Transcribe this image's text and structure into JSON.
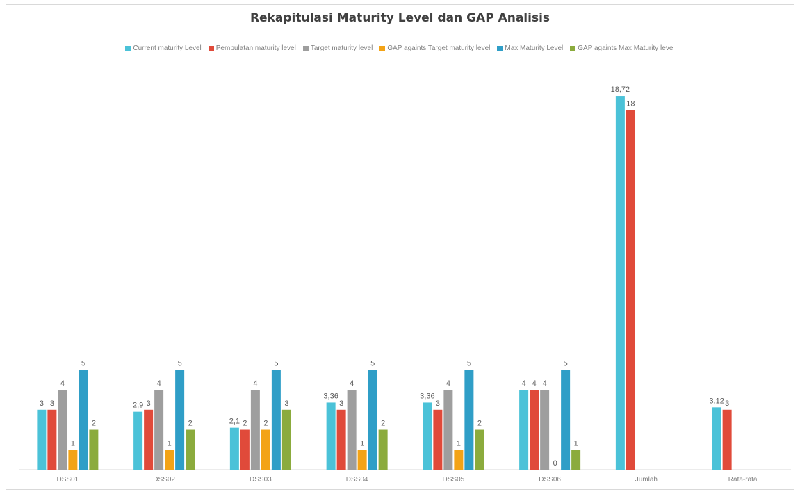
{
  "chart_data": {
    "type": "bar",
    "title": "Rekapitulasi Maturity Level dan GAP Analisis",
    "xlabel": "",
    "ylabel": "",
    "ylim": [
      0,
      19
    ],
    "grid": false,
    "legend_position": "top",
    "categories": [
      "DSS01",
      "DSS02",
      "DSS03",
      "DSS04",
      "DSS05",
      "DSS06",
      "Jumlah",
      "Rata-rata"
    ],
    "series": [
      {
        "name": "Current maturity Level",
        "color": "#4bc2d8",
        "values": [
          3,
          2.9,
          2.1,
          3.36,
          3.36,
          4,
          18.72,
          3.12
        ],
        "labels": [
          "3",
          "2,9",
          "2,1",
          "3,36",
          "3,36",
          "4",
          "18,72",
          "3,12"
        ]
      },
      {
        "name": "Pembulatan maturity level",
        "color": "#e04a3a",
        "values": [
          3,
          3,
          2,
          3,
          3,
          4,
          18,
          3
        ],
        "labels": [
          "3",
          "3",
          "2",
          "3",
          "3",
          "4",
          "18",
          "3"
        ]
      },
      {
        "name": "Target maturity level",
        "color": "#9e9e9e",
        "values": [
          4,
          4,
          4,
          4,
          4,
          4,
          null,
          null
        ],
        "labels": [
          "4",
          "4",
          "4",
          "4",
          "4",
          "4",
          "",
          ""
        ]
      },
      {
        "name": "GAP againts Target maturity level",
        "color": "#f3a316",
        "values": [
          1,
          1,
          2,
          1,
          1,
          0,
          null,
          null
        ],
        "labels": [
          "1",
          "1",
          "2",
          "1",
          "1",
          "0",
          "",
          ""
        ]
      },
      {
        "name": "Max Maturity Level",
        "color": "#2f9ec7",
        "values": [
          5,
          5,
          5,
          5,
          5,
          5,
          null,
          null
        ],
        "labels": [
          "5",
          "5",
          "5",
          "5",
          "5",
          "5",
          "",
          ""
        ]
      },
      {
        "name": "GAP againts Max Maturity level",
        "color": "#8bab3d",
        "values": [
          2,
          2,
          3,
          2,
          2,
          1,
          null,
          null
        ],
        "labels": [
          "2",
          "2",
          "3",
          "2",
          "2",
          "1",
          "",
          ""
        ]
      }
    ]
  }
}
